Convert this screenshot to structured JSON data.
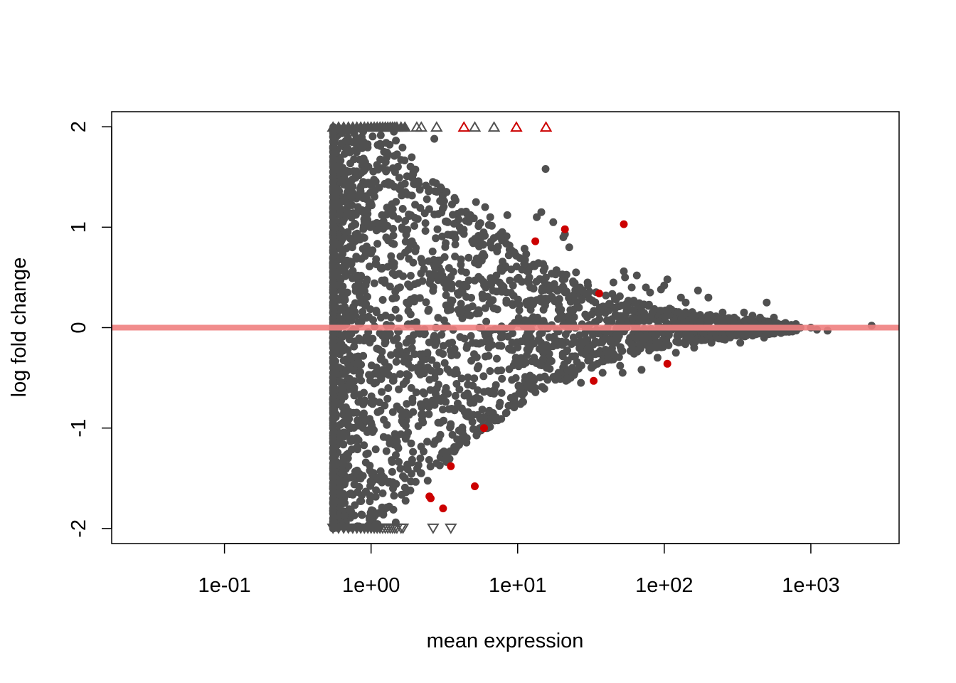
{
  "chart_data": {
    "type": "scatter",
    "title": "",
    "xlabel": "mean expression",
    "ylabel": "log fold change",
    "x_scale": "log10",
    "xlim": [
      0.017,
      4000
    ],
    "ylim": [
      -2.15,
      2.15
    ],
    "x_ticks": [
      0.1,
      1,
      10,
      100,
      1000
    ],
    "x_tick_labels": [
      "1e-01",
      "1e+00",
      "1e+01",
      "1e+02",
      "1e+03"
    ],
    "y_ticks": [
      -2,
      -1,
      0,
      1,
      2
    ],
    "y_tick_labels": [
      "-2",
      "-1",
      "0",
      "1",
      "2"
    ],
    "grid": false,
    "legend": "none",
    "reference_line": {
      "y": 0,
      "color": "#f08080"
    },
    "colors": {
      "not_significant": "#505050",
      "significant": "#cc0000"
    },
    "y_clip": [
      -2,
      2
    ],
    "bulk_envelope": {
      "x": [
        0.55,
        0.8,
        1.0,
        1.5,
        2.0,
        3.0,
        5.0,
        8.0,
        12.0,
        20.0,
        35.0,
        60.0,
        100.0,
        200.0,
        400.0,
        800.0
      ],
      "y_upper": [
        2.0,
        2.0,
        2.0,
        1.95,
        1.65,
        1.4,
        1.15,
        0.95,
        0.75,
        0.55,
        0.38,
        0.28,
        0.2,
        0.13,
        0.08,
        0.04
      ],
      "y_lower": [
        -2.0,
        -2.0,
        -2.0,
        -1.95,
        -1.65,
        -1.4,
        -1.1,
        -0.9,
        -0.7,
        -0.55,
        -0.38,
        -0.28,
        -0.2,
        -0.13,
        -0.08,
        -0.04
      ]
    },
    "series": [
      {
        "name": "",
        "significant": false,
        "x": [
          2.7,
          15.5,
          5.2,
          6.0,
          6.5,
          8.5,
          13.5,
          14.5,
          17.5,
          20.5,
          21.0,
          22.5,
          25.0,
          30.0,
          40.0,
          45.0,
          53.0,
          54.0,
          60.0,
          65.0,
          75.0,
          80.0,
          95.0,
          100.0,
          105.0,
          130.0,
          140.0,
          170.0,
          200.0,
          250.0,
          300.0,
          350.0,
          400.0,
          450.0,
          500.0,
          520.0,
          560.0,
          650.0,
          700.0,
          850.0,
          1000.0,
          1100.0,
          1300.0,
          2600.0,
          1.2,
          1.4,
          1.7,
          2.2,
          2.8,
          3.2,
          3.8,
          4.5,
          5.5,
          5.7,
          6.8,
          7.5,
          9.0,
          10.5,
          12.0,
          16.0,
          18.5,
          19.0,
          23.0,
          27.0,
          32.0,
          38.0,
          50.0,
          52.0,
          70.0,
          90.0,
          120.0,
          160.0,
          210.0,
          260.0,
          330.0,
          480.0
        ],
        "y": [
          1.88,
          1.58,
          1.25,
          1.2,
          1.1,
          1.12,
          1.1,
          1.15,
          1.05,
          0.9,
          0.93,
          0.8,
          0.55,
          0.45,
          0.32,
          0.45,
          0.56,
          0.5,
          0.4,
          0.52,
          0.4,
          0.35,
          0.38,
          0.42,
          0.48,
          0.3,
          0.25,
          0.37,
          0.3,
          0.15,
          0.1,
          0.15,
          0.12,
          0.1,
          0.25,
          0.05,
          0.1,
          0.0,
          0.02,
          0.0,
          0.0,
          -0.02,
          -0.03,
          0.02,
          -1.65,
          -1.55,
          -1.5,
          -1.45,
          -1.35,
          -1.25,
          -1.2,
          -1.1,
          -1.0,
          -0.92,
          -0.85,
          -0.78,
          -0.7,
          -0.6,
          -0.58,
          -0.52,
          -0.48,
          -0.45,
          -0.5,
          -0.55,
          -0.4,
          -0.45,
          -0.38,
          -0.45,
          -0.42,
          -0.3,
          -0.25,
          -0.2,
          -0.15,
          -0.12,
          -0.15,
          -0.1
        ]
      },
      {
        "name": "",
        "significant": true,
        "x": [
          21.0,
          13.2,
          53.0,
          36.0,
          5.9,
          3.5,
          5.1,
          2.5,
          2.55,
          3.1,
          33.0,
          105.0
        ],
        "y": [
          0.98,
          0.86,
          1.03,
          0.34,
          -1.0,
          -1.38,
          -1.58,
          -1.68,
          -1.7,
          -1.8,
          -0.53,
          -0.36
        ]
      },
      {
        "name": "",
        "significant": false,
        "clipped": "top",
        "x": [
          0.55,
          0.6,
          0.65,
          0.7,
          0.75,
          0.8,
          0.85,
          0.9,
          0.95,
          1.0,
          1.05,
          1.1,
          1.15,
          1.2,
          1.25,
          1.3,
          1.35,
          1.4,
          1.45,
          1.5,
          1.6,
          1.7,
          2.05,
          2.2,
          2.8,
          5.1,
          6.9
        ],
        "y": [
          2,
          2,
          2,
          2,
          2,
          2,
          2,
          2,
          2,
          2,
          2,
          2,
          2,
          2,
          2,
          2,
          2,
          2,
          2,
          2,
          2,
          2,
          2,
          2,
          2,
          2,
          2
        ]
      },
      {
        "name": "",
        "significant": true,
        "clipped": "top",
        "x": [
          4.3,
          9.8,
          15.6
        ],
        "y": [
          2,
          2,
          2
        ]
      },
      {
        "name": "",
        "significant": false,
        "clipped": "bottom",
        "x": [
          0.55,
          0.6,
          0.65,
          0.7,
          0.75,
          0.8,
          0.85,
          0.9,
          0.95,
          1.0,
          1.05,
          1.1,
          1.15,
          1.2,
          1.25,
          1.3,
          1.35,
          1.4,
          1.45,
          1.5,
          1.6,
          1.65,
          2.65,
          3.5
        ],
        "y": [
          -2,
          -2,
          -2,
          -2,
          -2,
          -2,
          -2,
          -2,
          -2,
          -2,
          -2,
          -2,
          -2,
          -2,
          -2,
          -2,
          -2,
          -2,
          -2,
          -2,
          -2,
          -2,
          -2,
          -2
        ]
      }
    ]
  }
}
